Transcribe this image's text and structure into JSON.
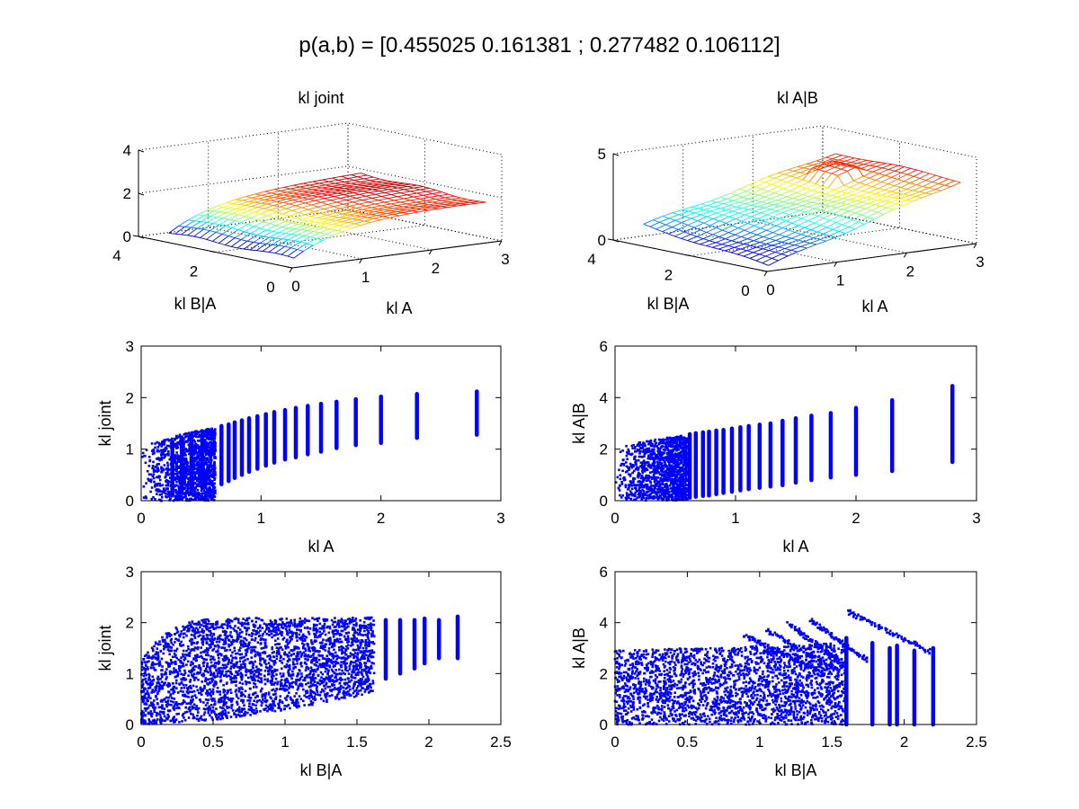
{
  "figure": {
    "suptitle": "p(a,b) = [0.455025 0.161381 ; 0.277482 0.106112]"
  },
  "chart_data": [
    {
      "id": "kl-joint-surface",
      "type": "surface",
      "title": "kl joint",
      "xlabel": "kl A",
      "ylabel": "kl B|A",
      "zlabel": "",
      "xlim": [
        0,
        3
      ],
      "ylim": [
        0,
        4
      ],
      "zlim": [
        0,
        4
      ],
      "xticks": [
        0,
        1,
        2,
        3
      ],
      "yticks": [
        0,
        2,
        4
      ],
      "zticks": [
        0,
        2,
        4
      ],
      "grid": true,
      "colormap": "jet",
      "surface_description": "z rises with kl A from about 0.3 to about 2.0; nearly flat in kl B|A",
      "z_range": [
        0.3,
        2.1
      ]
    },
    {
      "id": "kl-a-given-b-surface",
      "type": "surface",
      "title": "kl A|B",
      "xlabel": "kl A",
      "ylabel": "kl B|A",
      "zlabel": "",
      "xlim": [
        0,
        3
      ],
      "ylim": [
        0,
        4
      ],
      "zlim": [
        0,
        5
      ],
      "xticks": [
        0,
        1,
        2,
        3
      ],
      "yticks": [
        0,
        2,
        4
      ],
      "zticks": [
        0,
        5
      ],
      "grid": true,
      "colormap": "jet",
      "z_range": [
        0.2,
        4.4
      ]
    },
    {
      "id": "kl-joint-vs-kl-a",
      "type": "scatter",
      "title": "",
      "xlabel": "kl A",
      "ylabel": "kl joint",
      "xlim": [
        0,
        3
      ],
      "ylim": [
        0,
        3
      ],
      "xticks": [
        0,
        1,
        2,
        3
      ],
      "yticks": [
        0,
        1,
        2,
        3
      ],
      "color": "#0000ff",
      "columns": [
        {
          "x": 2.8,
          "ymin": 1.28,
          "ymax": 2.12
        },
        {
          "x": 2.3,
          "ymin": 1.22,
          "ymax": 2.07
        },
        {
          "x": 2.0,
          "ymin": 1.12,
          "ymax": 2.02
        },
        {
          "x": 1.79,
          "ymin": 1.08,
          "ymax": 1.97
        },
        {
          "x": 1.63,
          "ymin": 1.02,
          "ymax": 1.92
        },
        {
          "x": 1.5,
          "ymin": 0.95,
          "ymax": 1.88
        },
        {
          "x": 1.39,
          "ymin": 0.9,
          "ymax": 1.84
        },
        {
          "x": 1.29,
          "ymin": 0.84,
          "ymax": 1.8
        },
        {
          "x": 1.2,
          "ymin": 0.8,
          "ymax": 1.76
        },
        {
          "x": 1.11,
          "ymin": 0.74,
          "ymax": 1.72
        },
        {
          "x": 1.04,
          "ymin": 0.68,
          "ymax": 1.68
        },
        {
          "x": 0.97,
          "ymin": 0.62,
          "ymax": 1.64
        },
        {
          "x": 0.9,
          "ymin": 0.56,
          "ymax": 1.6
        },
        {
          "x": 0.84,
          "ymin": 0.5,
          "ymax": 1.56
        },
        {
          "x": 0.78,
          "ymin": 0.44,
          "ymax": 1.52
        },
        {
          "x": 0.73,
          "ymin": 0.38,
          "ymax": 1.48
        },
        {
          "x": 0.67,
          "ymin": 0.32,
          "ymax": 1.45
        },
        {
          "x": 0.51,
          "ymin": 0.25,
          "ymax": 1.35
        },
        {
          "x": 0.42,
          "ymin": 0.2,
          "ymax": 1.28
        },
        {
          "x": 0.34,
          "ymin": 0.15,
          "ymax": 1.22
        },
        {
          "x": 0.26,
          "ymin": 0.1,
          "ymax": 1.14
        }
      ],
      "dense_region": {
        "x_from": 0.0,
        "x_to": 0.62,
        "y_at_x0": [
          0.0,
          0.92
        ],
        "y_top_at_x_to": 1.42
      }
    },
    {
      "id": "kl-a-given-b-vs-kl-a",
      "type": "scatter",
      "title": "",
      "xlabel": "kl A",
      "ylabel": "kl A|B",
      "xlim": [
        0,
        3
      ],
      "ylim": [
        0,
        6
      ],
      "xticks": [
        0,
        1,
        2,
        3
      ],
      "yticks": [
        0,
        2,
        4,
        6
      ],
      "color": "#0000ff",
      "columns": [
        {
          "x": 2.8,
          "ymin": 1.5,
          "ymax": 4.45
        },
        {
          "x": 2.3,
          "ymin": 1.15,
          "ymax": 3.9
        },
        {
          "x": 2.0,
          "ymin": 1.0,
          "ymax": 3.6
        },
        {
          "x": 1.79,
          "ymin": 0.9,
          "ymax": 3.4
        },
        {
          "x": 1.63,
          "ymin": 0.8,
          "ymax": 3.3
        },
        {
          "x": 1.5,
          "ymin": 0.7,
          "ymax": 3.2
        },
        {
          "x": 1.39,
          "ymin": 0.6,
          "ymax": 3.1
        },
        {
          "x": 1.29,
          "ymin": 0.55,
          "ymax": 3.0
        },
        {
          "x": 1.2,
          "ymin": 0.5,
          "ymax": 2.95
        },
        {
          "x": 1.11,
          "ymin": 0.45,
          "ymax": 2.9
        },
        {
          "x": 1.04,
          "ymin": 0.4,
          "ymax": 2.85
        },
        {
          "x": 0.97,
          "ymin": 0.35,
          "ymax": 2.8
        },
        {
          "x": 0.9,
          "ymin": 0.3,
          "ymax": 2.75
        },
        {
          "x": 0.84,
          "ymin": 0.25,
          "ymax": 2.72
        },
        {
          "x": 0.78,
          "ymin": 0.2,
          "ymax": 2.68
        },
        {
          "x": 0.73,
          "ymin": 0.18,
          "ymax": 2.65
        },
        {
          "x": 0.67,
          "ymin": 0.15,
          "ymax": 2.62
        },
        {
          "x": 0.62,
          "ymin": 0.12,
          "ymax": 2.58
        }
      ],
      "dense_region": {
        "x_from": 0.0,
        "x_to": 0.6,
        "y_at_x0": [
          0.0,
          1.85
        ],
        "y_top_at_x_to": 2.55
      }
    },
    {
      "id": "kl-joint-vs-kl-b-given-a",
      "type": "scatter",
      "title": "",
      "xlabel": "kl B|A",
      "ylabel": "kl joint",
      "xlim": [
        0,
        2.5
      ],
      "ylim": [
        0,
        3
      ],
      "xticks": [
        0,
        0.5,
        1,
        1.5,
        2,
        2.5
      ],
      "yticks": [
        0,
        1,
        2,
        3
      ],
      "color": "#0000ff",
      "upper_envelope": [
        [
          0.0,
          1.25
        ],
        [
          0.1,
          1.62
        ],
        [
          0.2,
          1.85
        ],
        [
          0.3,
          1.98
        ],
        [
          0.4,
          2.05
        ],
        [
          0.6,
          2.1
        ],
        [
          1.0,
          2.1
        ],
        [
          1.4,
          2.1
        ],
        [
          1.62,
          2.1
        ]
      ],
      "lower_envelope": [
        [
          0.0,
          0.0
        ],
        [
          0.5,
          0.08
        ],
        [
          1.0,
          0.28
        ],
        [
          1.4,
          0.5
        ],
        [
          1.6,
          0.6
        ],
        [
          1.62,
          0.6
        ]
      ],
      "columns": [
        {
          "x": 1.7,
          "ymin": 0.9,
          "ymax": 2.05
        },
        {
          "x": 1.8,
          "ymin": 1.0,
          "ymax": 2.05
        },
        {
          "x": 1.9,
          "ymin": 1.1,
          "ymax": 2.05
        },
        {
          "x": 1.97,
          "ymin": 1.2,
          "ymax": 2.08
        },
        {
          "x": 2.07,
          "ymin": 1.3,
          "ymax": 2.05
        },
        {
          "x": 2.2,
          "ymin": 1.3,
          "ymax": 2.12
        }
      ]
    },
    {
      "id": "kl-a-given-b-vs-kl-b-given-a",
      "type": "scatter",
      "title": "",
      "xlabel": "kl B|A",
      "ylabel": "kl A|B",
      "xlim": [
        0,
        2.5
      ],
      "ylim": [
        0,
        6
      ],
      "xticks": [
        0,
        0.5,
        1,
        1.5,
        2,
        2.5
      ],
      "yticks": [
        0,
        2,
        4,
        6
      ],
      "color": "#0000ff",
      "dense_region": {
        "x_from": 0.0,
        "x_to": 1.6,
        "y_top_at_x0": 2.9,
        "y_top_at_x_to": 3.2
      },
      "diagonal_bands": [
        {
          "x": [
            0.9,
            1.45
          ],
          "y": [
            3.5,
            2.0
          ]
        },
        {
          "x": [
            1.05,
            1.55
          ],
          "y": [
            3.7,
            2.1
          ]
        },
        {
          "x": [
            1.2,
            1.6
          ],
          "y": [
            3.95,
            2.3
          ]
        },
        {
          "x": [
            1.35,
            1.75
          ],
          "y": [
            4.1,
            2.5
          ]
        },
        {
          "x": [
            1.6,
            2.2
          ],
          "y": [
            4.45,
            2.8
          ]
        }
      ],
      "columns": [
        {
          "x": 1.6,
          "ymin": 0.0,
          "ymax": 3.4
        },
        {
          "x": 1.78,
          "ymin": 0.0,
          "ymax": 3.2
        },
        {
          "x": 1.9,
          "ymin": 0.0,
          "ymax": 3.0
        },
        {
          "x": 1.95,
          "ymin": 0.0,
          "ymax": 3.1
        },
        {
          "x": 2.07,
          "ymin": 0.0,
          "ymax": 2.9
        },
        {
          "x": 2.2,
          "ymin": 0.0,
          "ymax": 3.0
        }
      ]
    }
  ]
}
